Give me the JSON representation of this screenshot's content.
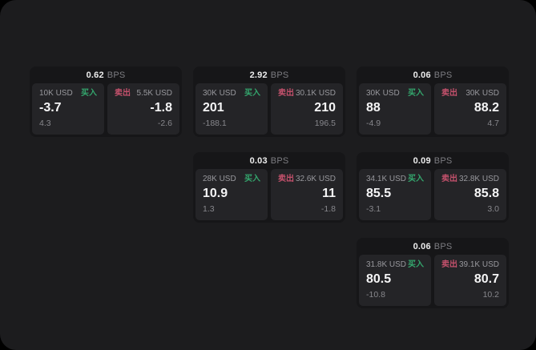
{
  "labels": {
    "bps_suffix": "BPS",
    "buy": "买入",
    "sell": "卖出"
  },
  "colors": {
    "background_outer": "#000000",
    "surface": "#1c1c1e",
    "card": "#161618",
    "panel": "#242427",
    "buy_green": "#34a66d",
    "sell_red": "#c4516c"
  },
  "cards": [
    {
      "bps": "0.62",
      "buy": {
        "size": "10K USD",
        "value": "-3.7",
        "sub": "4.3"
      },
      "sell": {
        "size": "5.5K USD",
        "value": "-1.8",
        "sub": "-2.6"
      }
    },
    {
      "bps": "2.92",
      "buy": {
        "size": "30K USD",
        "value": "201",
        "sub": "-188.1"
      },
      "sell": {
        "size": "30.1K USD",
        "value": "210",
        "sub": "196.5"
      }
    },
    {
      "bps": "0.06",
      "buy": {
        "size": "30K USD",
        "value": "88",
        "sub": "-4.9"
      },
      "sell": {
        "size": "30K USD",
        "value": "88.2",
        "sub": "4.7"
      }
    },
    {
      "bps": "0.03",
      "buy": {
        "size": "28K USD",
        "value": "10.9",
        "sub": "1.3"
      },
      "sell": {
        "size": "32.6K USD",
        "value": "11",
        "sub": "-1.8"
      }
    },
    {
      "bps": "0.09",
      "buy": {
        "size": "34.1K USD",
        "value": "85.5",
        "sub": "-3.1"
      },
      "sell": {
        "size": "32.8K USD",
        "value": "85.8",
        "sub": "3.0"
      }
    },
    {
      "bps": "0.06",
      "buy": {
        "size": "31.8K USD",
        "value": "80.5",
        "sub": "-10.8"
      },
      "sell": {
        "size": "39.1K USD",
        "value": "80.7",
        "sub": "10.2"
      }
    }
  ]
}
